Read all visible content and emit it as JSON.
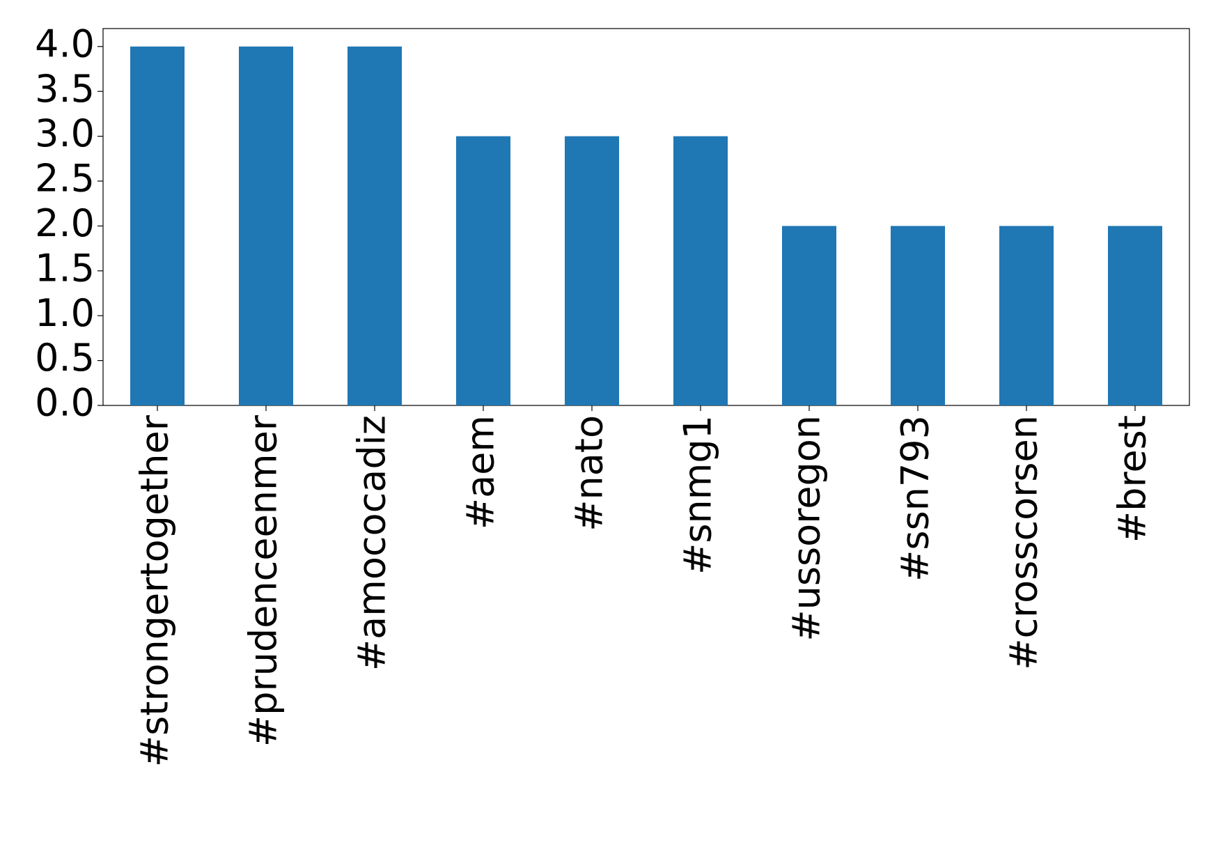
{
  "chart_data": {
    "type": "bar",
    "categories": [
      "#strongertogether",
      "#prudenceenmer",
      "#amococadiz",
      "#aem",
      "#nato",
      "#snmg1",
      "#ussoregon",
      "#ssn793",
      "#crosscorsen",
      "#brest"
    ],
    "values": [
      4,
      4,
      4,
      3,
      3,
      3,
      2,
      2,
      2,
      2
    ],
    "color": "#1f77b4",
    "ylim": [
      0,
      4.2
    ],
    "yticks": [
      {
        "value": 0,
        "label": "0.0"
      },
      0.5,
      {
        "value": 1,
        "label": "1.0"
      },
      1.5,
      {
        "value": 2,
        "label": "2.0"
      },
      2.5,
      {
        "value": 3,
        "label": "3.0"
      },
      3.5,
      {
        "value": 4,
        "label": "4.0"
      }
    ],
    "grid": false
  }
}
